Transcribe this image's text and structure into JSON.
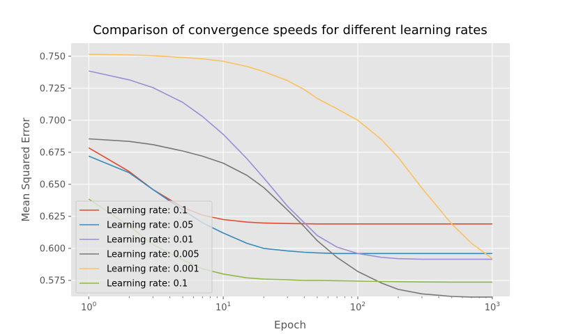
{
  "chart_data": {
    "type": "line",
    "title": "Comparison of convergence speeds for different learning rates",
    "xlabel": "Epoch",
    "ylabel": "Mean Squared Error",
    "xscale": "log",
    "xlim": [
      0.74,
      1350
    ],
    "ylim": [
      0.5625,
      0.7602
    ],
    "xticks": [
      1,
      10,
      100,
      1000
    ],
    "xtick_labels": [
      "10^0",
      "10^1",
      "10^2",
      "10^3"
    ],
    "yticks": [
      0.575,
      0.6,
      0.625,
      0.65,
      0.675,
      0.7,
      0.725,
      0.75
    ],
    "ytick_labels": [
      "0.575",
      "0.600",
      "0.625",
      "0.650",
      "0.675",
      "0.700",
      "0.725",
      "0.750"
    ],
    "grid": true,
    "legend_position": "lower-left",
    "x": [
      0,
      1,
      2,
      3,
      5,
      7,
      10,
      15,
      20,
      30,
      40,
      50,
      70,
      100,
      150,
      200,
      300,
      500,
      700,
      1000
    ],
    "series": [
      {
        "name": "Learning rate: 0.1",
        "color": "#E24A33",
        "values": [
          0.6785,
          0.6785,
          0.66,
          0.646,
          0.632,
          0.626,
          0.6225,
          0.6205,
          0.6198,
          0.6194,
          0.6192,
          0.6191,
          0.6191,
          0.6191,
          0.6191,
          0.6191,
          0.6191,
          0.6191,
          0.6191,
          0.6191
        ]
      },
      {
        "name": "Learning rate: 0.05",
        "color": "#348ABD",
        "values": [
          0.672,
          0.672,
          0.659,
          0.646,
          0.63,
          0.62,
          0.612,
          0.604,
          0.6,
          0.598,
          0.597,
          0.5965,
          0.596,
          0.596,
          0.596,
          0.596,
          0.596,
          0.596,
          0.596,
          0.596
        ]
      },
      {
        "name": "Learning rate: 0.01",
        "color": "#988ED5",
        "values": [
          0.7385,
          0.7385,
          0.7315,
          0.7255,
          0.714,
          0.703,
          0.689,
          0.67,
          0.655,
          0.633,
          0.62,
          0.61,
          0.601,
          0.596,
          0.593,
          0.592,
          0.5915,
          0.5915,
          0.5915,
          0.5915
        ]
      },
      {
        "name": "Learning rate: 0.005",
        "color": "#777777",
        "values": [
          0.6855,
          0.6855,
          0.6835,
          0.681,
          0.676,
          0.672,
          0.6665,
          0.657,
          0.6475,
          0.63,
          0.617,
          0.606,
          0.593,
          0.582,
          0.573,
          0.568,
          0.5645,
          0.5625,
          0.562,
          0.562
        ]
      },
      {
        "name": "Learning rate: 0.001",
        "color": "#FBC15E",
        "values": [
          0.7515,
          0.7515,
          0.751,
          0.7505,
          0.749,
          0.748,
          0.746,
          0.742,
          0.738,
          0.731,
          0.724,
          0.717,
          0.709,
          0.7,
          0.685,
          0.671,
          0.647,
          0.619,
          0.604,
          0.592
        ]
      },
      {
        "name": "Learning rate: 0.1",
        "color": "#8EBA42",
        "values": [
          0.6385,
          0.6385,
          0.6175,
          0.603,
          0.591,
          0.584,
          0.58,
          0.577,
          0.576,
          0.5755,
          0.575,
          0.575,
          0.5748,
          0.5745,
          0.5742,
          0.574,
          0.5738,
          0.5737,
          0.5737,
          0.5737
        ]
      }
    ]
  }
}
